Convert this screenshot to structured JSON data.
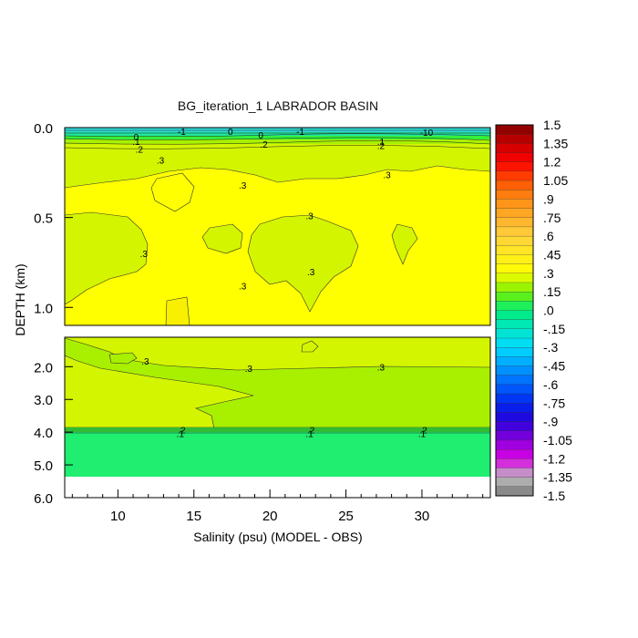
{
  "chart_data": {
    "type": "heatmap",
    "title": "BG_iteration_1 LABRADOR BASIN",
    "xlabel": "Salinity (psu) (MODEL - OBS)",
    "ylabel": "DEPTH (km)",
    "xlim": [
      6.5,
      34.5
    ],
    "x_ticks": [
      "10",
      "15",
      "20",
      "25",
      "30"
    ],
    "x_tick_values": [
      10,
      15,
      20,
      25,
      30
    ],
    "upper_panel": {
      "ylim": [
        0.0,
        1.1
      ],
      "y_ticks": [
        "0.0",
        "0.5",
        "1.0"
      ],
      "y_tick_values": [
        0.0,
        0.5,
        1.0
      ]
    },
    "lower_panel": {
      "ylim": [
        1.1,
        6.0
      ],
      "y_ticks": [
        "2.0",
        "3.0",
        "4.0",
        "5.0",
        "6.0"
      ],
      "y_tick_values": [
        2.0,
        3.0,
        4.0,
        5.0,
        6.0
      ]
    },
    "contour_labels": [
      {
        "text": "0",
        "panel": "upper",
        "x": 17.4,
        "y": 0.02
      },
      {
        "text": "-1",
        "panel": "upper",
        "x": 14.2,
        "y": 0.02
      },
      {
        "text": "-1",
        "panel": "upper",
        "x": 22.0,
        "y": 0.02
      },
      {
        "text": "-10",
        "panel": "upper",
        "x": 30.3,
        "y": 0.025
      },
      {
        "text": "0",
        "panel": "upper",
        "x": 19.4,
        "y": 0.04
      },
      {
        "text": "0",
        "panel": "upper",
        "x": 11.2,
        "y": 0.05
      },
      {
        "text": ".1",
        "panel": "upper",
        "x": 11.2,
        "y": 0.075
      },
      {
        "text": ".1",
        "panel": "upper",
        "x": 27.3,
        "y": 0.075
      },
      {
        "text": ".2",
        "panel": "upper",
        "x": 11.4,
        "y": 0.12
      },
      {
        "text": ".2",
        "panel": "upper",
        "x": 19.6,
        "y": 0.09
      },
      {
        "text": ".2",
        "panel": "upper",
        "x": 27.3,
        "y": 0.1
      },
      {
        "text": ".3",
        "panel": "upper",
        "x": 12.8,
        "y": 0.18
      },
      {
        "text": ".3",
        "panel": "upper",
        "x": 18.2,
        "y": 0.32
      },
      {
        "text": ".3",
        "panel": "upper",
        "x": 27.7,
        "y": 0.26
      },
      {
        "text": ".3",
        "panel": "upper",
        "x": 22.6,
        "y": 0.49
      },
      {
        "text": ".3",
        "panel": "upper",
        "x": 11.7,
        "y": 0.7
      },
      {
        "text": ".3",
        "panel": "upper",
        "x": 22.7,
        "y": 0.8
      },
      {
        "text": ".3",
        "panel": "upper",
        "x": 18.2,
        "y": 0.88
      },
      {
        "text": ".3",
        "panel": "lower",
        "x": 11.8,
        "y": 1.82
      },
      {
        "text": ".3",
        "panel": "lower",
        "x": 18.6,
        "y": 2.05
      },
      {
        "text": ".3",
        "panel": "lower",
        "x": 27.3,
        "y": 2.0
      },
      {
        "text": ".2",
        "panel": "lower",
        "x": 14.2,
        "y": 3.93
      },
      {
        "text": ".2",
        "panel": "lower",
        "x": 22.7,
        "y": 3.93
      },
      {
        "text": ".2",
        "panel": "lower",
        "x": 30.1,
        "y": 3.93
      },
      {
        "text": ".1",
        "panel": "lower",
        "x": 14.1,
        "y": 4.04
      },
      {
        "text": ".1",
        "panel": "lower",
        "x": 22.6,
        "y": 4.04
      },
      {
        "text": ".1",
        "panel": "lower",
        "x": 30.0,
        "y": 4.04
      }
    ],
    "colorbar": {
      "labels": [
        "1.5",
        "1.35",
        "1.2",
        "1.05",
        ".9",
        ".75",
        ".6",
        ".45",
        ".3",
        ".15",
        ".0",
        "-.15",
        "-.3",
        "-.45",
        "-.6",
        "-.75",
        "-.9",
        "-1.05",
        "-1.2",
        "-1.35",
        "-1.5"
      ],
      "label_values": [
        1.5,
        1.35,
        1.2,
        1.05,
        0.9,
        0.75,
        0.6,
        0.45,
        0.3,
        0.15,
        0.0,
        -0.15,
        -0.3,
        -0.45,
        -0.6,
        -0.75,
        -0.9,
        -1.05,
        -1.2,
        -1.35,
        -1.5
      ],
      "bands": 40
    },
    "colors": {
      "field_0_3": "#ffff00",
      "field_0_2": "#d4f500",
      "field_0_15": "#a8f000",
      "field_0_1": "#35f03a",
      "field_0_05": "#26ee6e",
      "field_0": "#20e8a0",
      "field_neg": "#2fdcd8",
      "no_data": "#ffffff"
    }
  }
}
